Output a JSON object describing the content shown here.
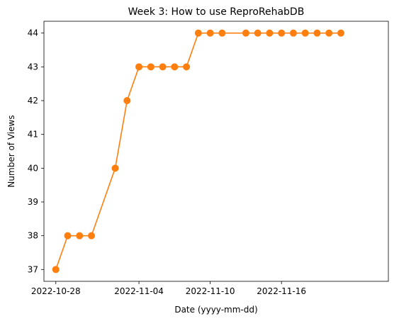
{
  "chart_data": {
    "type": "line",
    "title": "Week 3: How to use ReproRehabDB",
    "xlabel": "Date (yyyy-mm-dd)",
    "ylabel": "Number of Views",
    "x_ticks": [
      "2022-10-28",
      "2022-11-04",
      "2022-11-10",
      "2022-11-16"
    ],
    "y_ticks": [
      37,
      38,
      39,
      40,
      41,
      42,
      43,
      44
    ],
    "xlim": [
      "2022-10-27",
      "2022-11-25"
    ],
    "ylim": [
      36.65,
      44.35
    ],
    "grid": false,
    "series": [
      {
        "color": "#ff7f0e",
        "marker": "circle",
        "points": [
          {
            "x": "2022-10-28",
            "y": 37
          },
          {
            "x": "2022-10-29",
            "y": 38
          },
          {
            "x": "2022-10-30",
            "y": 38
          },
          {
            "x": "2022-10-31",
            "y": 38
          },
          {
            "x": "2022-11-02",
            "y": 40
          },
          {
            "x": "2022-11-03",
            "y": 42
          },
          {
            "x": "2022-11-04",
            "y": 43
          },
          {
            "x": "2022-11-05",
            "y": 43
          },
          {
            "x": "2022-11-06",
            "y": 43
          },
          {
            "x": "2022-11-07",
            "y": 43
          },
          {
            "x": "2022-11-08",
            "y": 43
          },
          {
            "x": "2022-11-09",
            "y": 44
          },
          {
            "x": "2022-11-10",
            "y": 44
          },
          {
            "x": "2022-11-11",
            "y": 44
          },
          {
            "x": "2022-11-13",
            "y": 44
          },
          {
            "x": "2022-11-14",
            "y": 44
          },
          {
            "x": "2022-11-15",
            "y": 44
          },
          {
            "x": "2022-11-16",
            "y": 44
          },
          {
            "x": "2022-11-17",
            "y": 44
          },
          {
            "x": "2022-11-18",
            "y": 44
          },
          {
            "x": "2022-11-19",
            "y": 44
          },
          {
            "x": "2022-11-20",
            "y": 44
          },
          {
            "x": "2022-11-21",
            "y": 44
          }
        ]
      }
    ]
  }
}
